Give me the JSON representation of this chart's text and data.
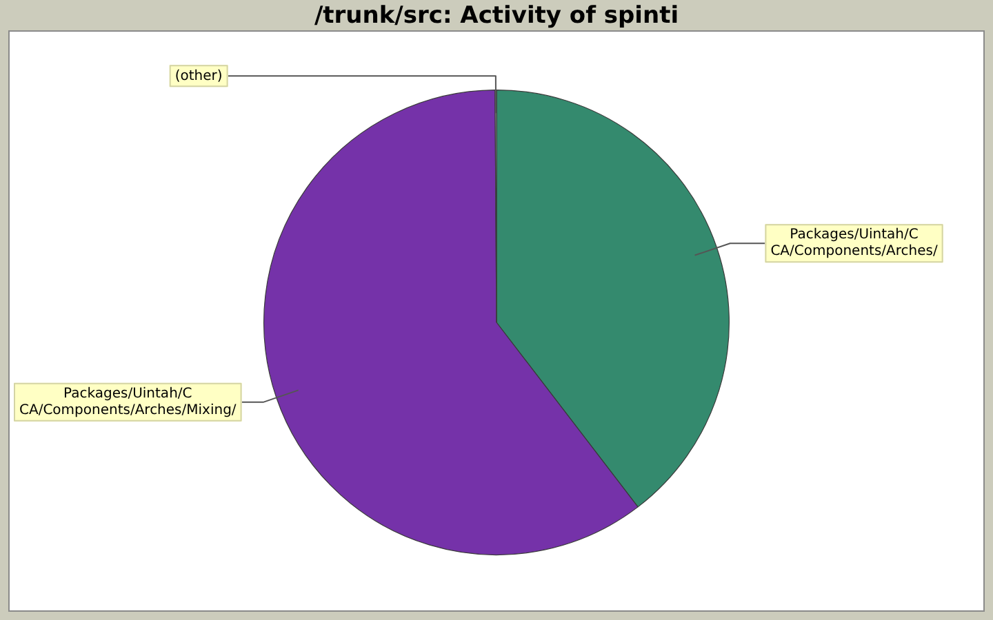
{
  "chart_data": {
    "type": "pie",
    "title": "/trunk/src: Activity of spinti",
    "categories": [
      "Packages/Uintah/C\nCA/Components/Arches/",
      "Packages/Uintah/C\nCA/Components/Arches/Mixing/",
      "(other)"
    ],
    "values": [
      39.6,
      60.3,
      0.1
    ],
    "colors": [
      "#348a6e",
      "#7532a9",
      "#c0c0c0"
    ]
  }
}
